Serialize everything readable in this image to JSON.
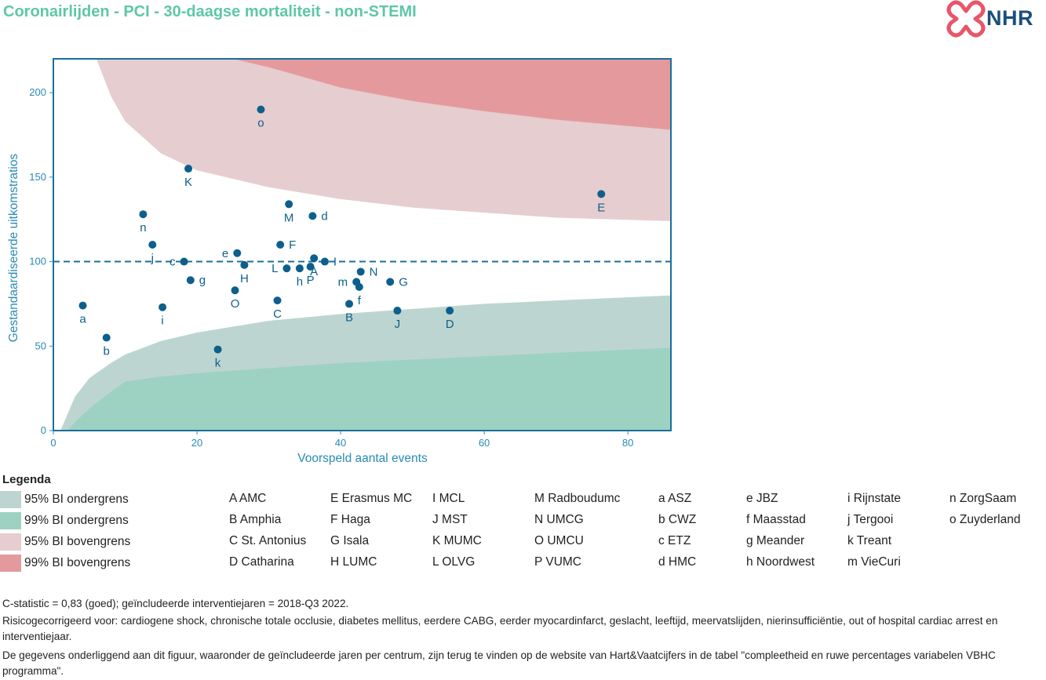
{
  "title": "Coronairlijden - PCI - 30-daagse mortaliteit - non-STEMI",
  "logo": {
    "text": "NHR",
    "brand_color": "#1b4f7a",
    "mark_color": "#e8566a"
  },
  "chart_data": {
    "type": "scatter",
    "xlabel": "Voorspeld aantal events",
    "ylabel": "Gestandaardiseerde uitkomstratios",
    "xlim": [
      0,
      86
    ],
    "ylim": [
      0,
      220
    ],
    "x_ticks": [
      0,
      20,
      40,
      60,
      80
    ],
    "y_ticks": [
      0,
      50,
      100,
      150,
      200
    ],
    "reference_line": {
      "y": 100,
      "style": "dashed"
    },
    "grid": false,
    "colors": {
      "point": "#0d5f8c",
      "axis": "#2a8ab5",
      "frame": "#1a6f9a",
      "band_95_lower": "#bdd5d0",
      "band_99_lower": "#9dd2c3",
      "band_95_upper": "#e6cdcf",
      "band_99_upper": "#e49a9d"
    },
    "bands": {
      "ci95_lower": [
        [
          1,
          0
        ],
        [
          2,
          10
        ],
        [
          3,
          20
        ],
        [
          5,
          31
        ],
        [
          8,
          40
        ],
        [
          10,
          45
        ],
        [
          15,
          53
        ],
        [
          20,
          58
        ],
        [
          30,
          65
        ],
        [
          40,
          69
        ],
        [
          50,
          72
        ],
        [
          60,
          75
        ],
        [
          70,
          77
        ],
        [
          86,
          80
        ]
      ],
      "ci99_lower": [
        [
          2,
          0
        ],
        [
          3,
          5
        ],
        [
          5,
          13
        ],
        [
          8,
          23
        ],
        [
          10,
          29
        ],
        [
          15,
          32
        ],
        [
          20,
          34
        ],
        [
          30,
          37
        ],
        [
          40,
          40
        ],
        [
          50,
          42
        ],
        [
          60,
          44
        ],
        [
          70,
          46
        ],
        [
          86,
          49
        ]
      ],
      "ci95_upper": [
        [
          6,
          220
        ],
        [
          8,
          198
        ],
        [
          10,
          183
        ],
        [
          15,
          164
        ],
        [
          20,
          154
        ],
        [
          30,
          144
        ],
        [
          40,
          137
        ],
        [
          50,
          132
        ],
        [
          60,
          129
        ],
        [
          70,
          126
        ],
        [
          86,
          124
        ]
      ],
      "ci99_upper": [
        [
          25,
          220
        ],
        [
          30,
          215
        ],
        [
          40,
          203
        ],
        [
          50,
          195
        ],
        [
          60,
          189
        ],
        [
          70,
          184
        ],
        [
          86,
          178
        ]
      ]
    },
    "points": [
      {
        "label": "o",
        "x": 28.9,
        "y": 190,
        "lp": "below"
      },
      {
        "label": "K",
        "x": 18.8,
        "y": 155,
        "lp": "below"
      },
      {
        "label": "E",
        "x": 76.3,
        "y": 140,
        "lp": "below"
      },
      {
        "label": "M",
        "x": 32.8,
        "y": 134,
        "lp": "below"
      },
      {
        "label": "d",
        "x": 36.1,
        "y": 127,
        "lp": "right"
      },
      {
        "label": "n",
        "x": 12.5,
        "y": 128,
        "lp": "below"
      },
      {
        "label": "F",
        "x": 31.6,
        "y": 110,
        "lp": "right"
      },
      {
        "label": "j",
        "x": 13.8,
        "y": 110,
        "lp": "below"
      },
      {
        "label": "e",
        "x": 25.6,
        "y": 105,
        "lp": "left"
      },
      {
        "label": "I",
        "x": 37.8,
        "y": 100,
        "lp": "right"
      },
      {
        "label": "A",
        "x": 36.3,
        "y": 102,
        "lp": "below"
      },
      {
        "label": "c",
        "x": 18.2,
        "y": 100,
        "lp": "left"
      },
      {
        "label": "H",
        "x": 26.6,
        "y": 98,
        "lp": "below"
      },
      {
        "label": "P",
        "x": 35.8,
        "y": 97,
        "lp": "below"
      },
      {
        "label": "L",
        "x": 32.5,
        "y": 96,
        "lp": "left"
      },
      {
        "label": "h",
        "x": 34.3,
        "y": 96,
        "lp": "below"
      },
      {
        "label": "N",
        "x": 42.8,
        "y": 94,
        "lp": "right"
      },
      {
        "label": "g",
        "x": 19.1,
        "y": 89,
        "lp": "right"
      },
      {
        "label": "m",
        "x": 42.2,
        "y": 88,
        "lp": "left"
      },
      {
        "label": "G",
        "x": 46.9,
        "y": 88,
        "lp": "right"
      },
      {
        "label": "f",
        "x": 42.6,
        "y": 85,
        "lp": "below"
      },
      {
        "label": "O",
        "x": 25.3,
        "y": 83,
        "lp": "below"
      },
      {
        "label": "C",
        "x": 31.2,
        "y": 77,
        "lp": "below"
      },
      {
        "label": "B",
        "x": 41.2,
        "y": 75,
        "lp": "below"
      },
      {
        "label": "a",
        "x": 4.1,
        "y": 74,
        "lp": "below"
      },
      {
        "label": "i",
        "x": 15.2,
        "y": 73,
        "lp": "below"
      },
      {
        "label": "J",
        "x": 47.9,
        "y": 71,
        "lp": "below"
      },
      {
        "label": "D",
        "x": 55.2,
        "y": 71,
        "lp": "below"
      },
      {
        "label": "b",
        "x": 7.4,
        "y": 55,
        "lp": "below"
      },
      {
        "label": "k",
        "x": 22.9,
        "y": 48,
        "lp": "below"
      }
    ]
  },
  "legend": {
    "heading": "Legenda",
    "bands": [
      {
        "label": "95% BI ondergrens",
        "color": "#bdd5d0"
      },
      {
        "label": "99% BI ondergrens",
        "color": "#9dd2c3"
      },
      {
        "label": "95% BI bovengrens",
        "color": "#e6cdcf"
      },
      {
        "label": "99% BI bovengrens",
        "color": "#e49a9d"
      }
    ],
    "centers": [
      [
        "A AMC",
        "B Amphia",
        "C St. Antonius",
        "D Catharina"
      ],
      [
        "E Erasmus MC",
        "F Haga",
        "G Isala",
        "H LUMC"
      ],
      [
        "I MCL",
        "J MST",
        "K MUMC",
        "L OLVG"
      ],
      [
        "M Radboudumc",
        "N UMCG",
        "O UMCU",
        "P VUMC"
      ],
      [
        "a ASZ",
        "b CWZ",
        "c ETZ",
        "d HMC"
      ],
      [
        "e JBZ",
        "f Maasstad",
        "g Meander",
        "h Noordwest"
      ],
      [
        "i Rijnstate",
        "j Tergooi",
        "k Treant",
        "m VieCuri"
      ],
      [
        "n ZorgSaam",
        "o Zuyderland"
      ]
    ]
  },
  "footnotes": {
    "cstat": "C-statistic =  0,83 (goed); geïncludeerde interventiejaren = 2018-Q3 2022.",
    "risk": "Risicogecorrigeerd voor: cardiogene shock, chronische totale occlusie, diabetes mellitus, eerdere CABG, eerder myocardinfarct, geslacht, leeftijd, meervatslijden, nierinsufficiëntie, out of hospital cardiac arrest en interventiejaar.",
    "data": "De gegevens onderliggend aan dit figuur, waaronder de geïncludeerde jaren per centrum, zijn terug te vinden op de website van Hart&Vaatcijfers in de tabel \"compleetheid en ruwe percentages variabelen VBHC programma\"."
  }
}
